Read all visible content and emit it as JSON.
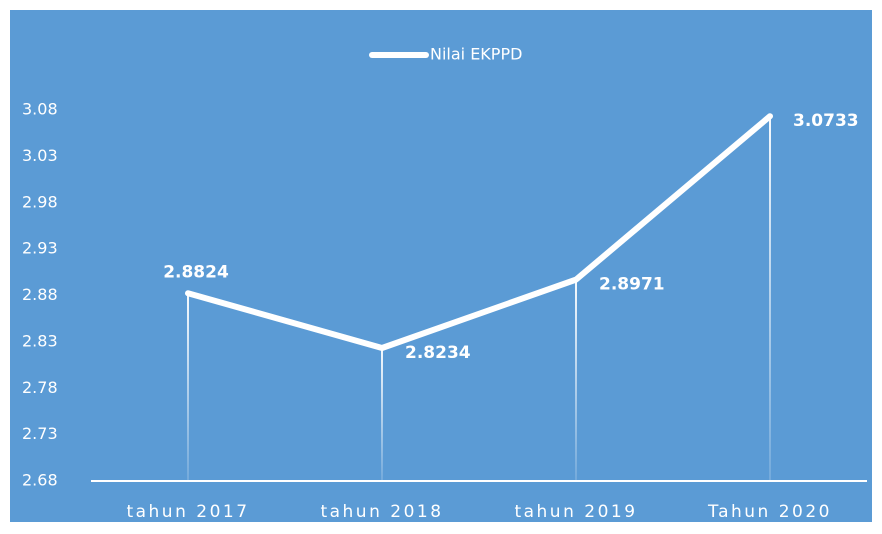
{
  "chart_data": {
    "type": "line",
    "categories": [
      "tahun 2017",
      "tahun 2018",
      "tahun 2019",
      "Tahun 2020"
    ],
    "series": [
      {
        "name": "Nilai EKPPD",
        "color": "#ffffff",
        "values": [
          2.8824,
          2.8234,
          2.8971,
          3.0733
        ]
      }
    ],
    "ylim": [
      2.68,
      3.08
    ],
    "yticks": [
      2.68,
      2.73,
      2.78,
      2.83,
      2.88,
      2.93,
      2.98,
      3.03,
      3.08
    ],
    "grid": false,
    "legend": "top"
  }
}
